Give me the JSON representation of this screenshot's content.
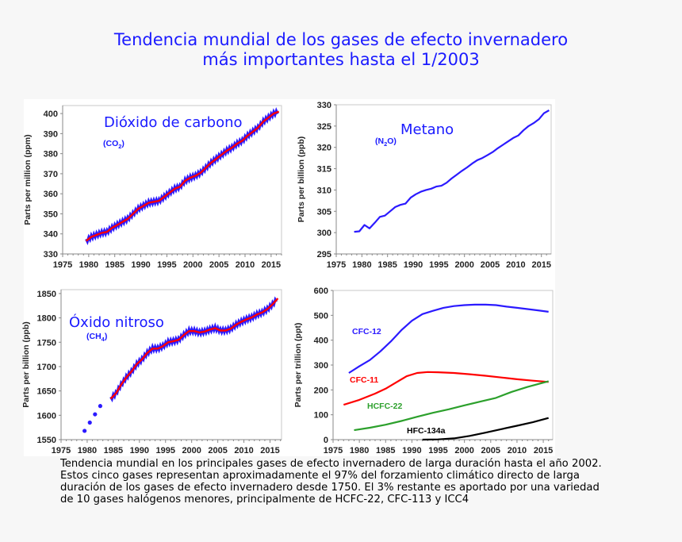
{
  "title": {
    "line1": "Tendencia mundial de los gases de efecto invernadero",
    "line2": "más importantes hasta el 1/2003"
  },
  "caption": {
    "lines": [
      "Tendencia mundial en los principales gases de efecto invernadero de larga duración hasta el año 2002.",
      "Estos cinco gases representan aproximadamente el 97% del forzamiento climático directo de larga",
      "duración de los gases de efecto invernadero desde 1750. El 3% restante es aportado por una variedad",
      "de 10 gases halógenos menores, principalmente de HCFC-22, CFC-113 y ICC4"
    ]
  },
  "colors": {
    "title": "#1a1aff",
    "blue": "#2b1aff",
    "red": "#ff0000",
    "green": "#2ca02c",
    "black": "#000000"
  },
  "chart_data": [
    {
      "id": "co2",
      "type": "line",
      "name": "Dióxido de carbono",
      "formula": "CO",
      "formula_sub": "2",
      "ylabel": "Parts per million (ppm)",
      "xlim": [
        1975,
        2017
      ],
      "ylim": [
        330,
        404
      ],
      "xticks": [
        1975,
        1980,
        1985,
        1990,
        1995,
        2000,
        2005,
        2010,
        2015
      ],
      "yticks": [
        330,
        340,
        350,
        360,
        370,
        380,
        390,
        400
      ],
      "grid": false,
      "series": [
        {
          "kind": "monthly",
          "color": "#2b1aff",
          "x_start": 1979,
          "values": [
            336.5,
            338.5,
            339.5,
            340.5,
            341,
            343,
            344.5,
            346,
            347.5,
            350,
            352.5,
            354,
            355.5,
            356,
            356.5,
            358.5,
            360.5,
            362.5,
            363.5,
            366.5,
            368,
            369,
            370.5,
            373,
            375.5,
            377.5,
            379.5,
            381.5,
            383,
            385,
            386.5,
            389,
            391,
            393,
            396,
            398,
            400,
            401
          ]
        },
        {
          "kind": "trend",
          "color": "#ff0000",
          "x_start": 1979,
          "values": [
            336.5,
            338.5,
            339.5,
            340.5,
            341,
            343,
            344.5,
            346,
            347.5,
            350,
            352.5,
            354,
            355.5,
            356,
            356.5,
            358.5,
            360.5,
            362.5,
            363.5,
            366.5,
            368,
            369,
            370.5,
            373,
            375.5,
            377.5,
            379.5,
            381.5,
            383,
            385,
            386.5,
            389,
            391,
            393,
            396,
            398,
            400,
            401
          ]
        }
      ]
    },
    {
      "id": "n2o",
      "type": "line",
      "name": "Metano",
      "formula": "(N",
      "formula_sub": "2",
      "formula_end": "O)",
      "ylabel": "Parts per billion (ppb)",
      "xlim": [
        1975,
        2016.9
      ],
      "ylim": [
        295,
        330
      ],
      "xticks": [
        1975,
        1980,
        1985,
        1990,
        1995,
        2000,
        2005,
        2010,
        2015
      ],
      "yticks": [
        295,
        300,
        305,
        310,
        315,
        320,
        325,
        330
      ],
      "grid": false,
      "series": [
        {
          "kind": "line",
          "color": "#2b1aff",
          "x_start": 1978,
          "values": [
            300.2,
            300.3,
            301.8,
            301,
            302.3,
            303.7,
            304,
            305,
            306,
            306.5,
            306.8,
            308.2,
            309,
            309.6,
            310,
            310.3,
            310.8,
            311,
            311.7,
            312.7,
            313.6,
            314.5,
            315.3,
            316.2,
            317,
            317.5,
            318.2,
            318.9,
            319.8,
            320.6,
            321.4,
            322.2,
            322.8,
            324,
            325,
            325.7,
            326.6,
            328,
            328.7
          ]
        }
      ]
    },
    {
      "id": "ch4",
      "type": "line",
      "name": "Óxido nitroso",
      "formula": "(CH",
      "formula_sub": "4",
      "formula_end": ")",
      "ylabel": "Parts per billion (ppb)",
      "xlim": [
        1975,
        2017.2
      ],
      "ylim": [
        1550,
        1858
      ],
      "xticks": [
        1975,
        1980,
        1985,
        1990,
        1995,
        2000,
        2005,
        2010,
        2015
      ],
      "yticks": [
        1550,
        1600,
        1650,
        1700,
        1750,
        1800,
        1850
      ],
      "grid": false,
      "points": {
        "color": "#2b1aff",
        "x": [
          1979.5,
          1980.5,
          1981.5,
          1982.5
        ],
        "y": [
          1568,
          1585,
          1602,
          1619
        ]
      },
      "series": [
        {
          "kind": "monthly",
          "color": "#2b1aff",
          "x_start": 1984,
          "values": [
            1634,
            1645,
            1663,
            1678,
            1690,
            1705,
            1715,
            1728,
            1737,
            1737,
            1742,
            1750,
            1752,
            1755,
            1765,
            1773,
            1773,
            1770,
            1772,
            1776,
            1779,
            1774,
            1774,
            1778,
            1786,
            1792,
            1797,
            1801,
            1807,
            1811,
            1818,
            1828,
            1840
          ]
        },
        {
          "kind": "trend",
          "color": "#ff0000",
          "x_start": 1984,
          "values": [
            1634,
            1645,
            1663,
            1678,
            1690,
            1705,
            1715,
            1728,
            1737,
            1737,
            1742,
            1750,
            1752,
            1755,
            1765,
            1773,
            1773,
            1770,
            1772,
            1776,
            1779,
            1774,
            1774,
            1778,
            1786,
            1792,
            1797,
            1801,
            1807,
            1811,
            1818,
            1828,
            1840
          ]
        }
      ]
    },
    {
      "id": "cfc",
      "type": "line",
      "ylabel": "Parts per trillion (ppt)",
      "xlim": [
        1975,
        2016.8
      ],
      "ylim": [
        0,
        600
      ],
      "xticks": [
        1975,
        1980,
        1985,
        1990,
        1995,
        2000,
        2005,
        2010,
        2015
      ],
      "yticks": [
        0,
        100,
        200,
        300,
        400,
        500,
        600
      ],
      "grid": false,
      "series": [
        {
          "name": "CFC-12",
          "color": "#2b1aff",
          "x": [
            1978,
            1980,
            1982,
            1984,
            1986,
            1988,
            1990,
            1992,
            1994,
            1996,
            1998,
            2000,
            2002,
            2004,
            2006,
            2008,
            2010,
            2012,
            2014,
            2016
          ],
          "y": [
            268,
            295,
            320,
            355,
            395,
            440,
            478,
            505,
            518,
            530,
            537,
            541,
            543,
            543,
            541,
            535,
            530,
            525,
            520,
            514
          ]
        },
        {
          "name": "CFC-11",
          "color": "#ff0000",
          "x": [
            1977,
            1980,
            1983,
            1985,
            1987,
            1989,
            1991,
            1993,
            1995,
            1998,
            2001,
            2004,
            2007,
            2010,
            2013,
            2016
          ],
          "y": [
            140,
            160,
            185,
            205,
            230,
            255,
            268,
            272,
            271,
            268,
            263,
            257,
            250,
            243,
            237,
            232
          ]
        },
        {
          "name": "HCFC-22",
          "color": "#2ca02c",
          "x": [
            1979,
            1982,
            1985,
            1988,
            1991,
            1994,
            1997,
            2000,
            2003,
            2006,
            2009,
            2012,
            2016
          ],
          "y": [
            38,
            48,
            60,
            75,
            92,
            108,
            122,
            138,
            153,
            168,
            192,
            212,
            235
          ]
        },
        {
          "name": "HFC-134a",
          "color": "#000000",
          "x": [
            1992,
            1995,
            1998,
            2001,
            2004,
            2007,
            2010,
            2013,
            2016
          ],
          "y": [
            0,
            1,
            5,
            15,
            28,
            42,
            56,
            70,
            87
          ]
        }
      ]
    }
  ]
}
